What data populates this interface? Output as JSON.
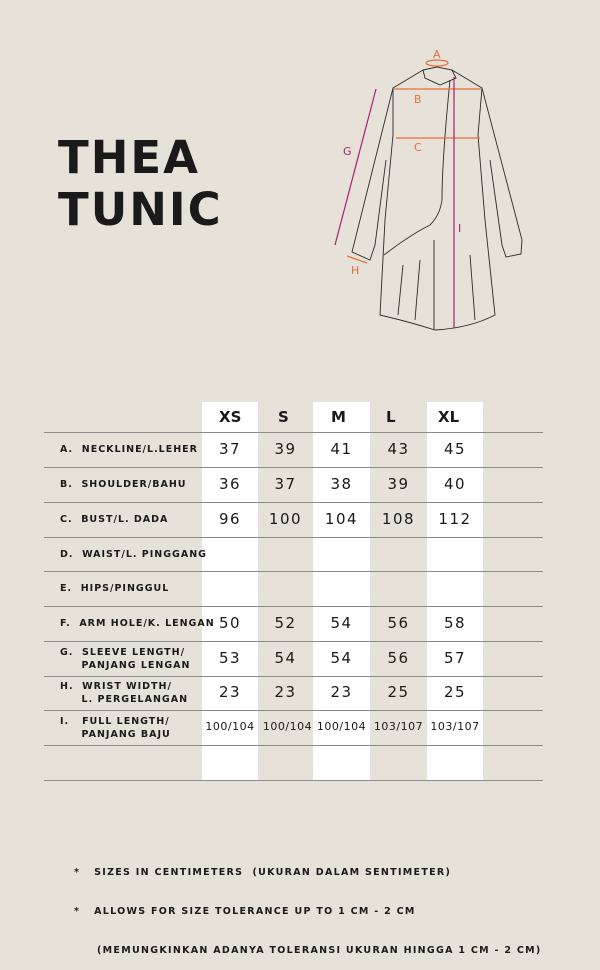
{
  "title_line1": "THEA",
  "title_line2": "TUNIC",
  "diagram_labels": {
    "a": "A",
    "b": "B",
    "c": "C",
    "g": "G",
    "h": "H",
    "i": "I"
  },
  "colors": {
    "background": "#e6e1d9",
    "orange": "#e8703a",
    "magenta": "#a8226a"
  },
  "table": {
    "sizes": [
      "XS",
      "S",
      "M",
      "L",
      "XL"
    ],
    "rows": [
      {
        "label": "A.  NECKLINE/L.LEHER",
        "values": [
          "37",
          "39",
          "41",
          "43",
          "45"
        ]
      },
      {
        "label": "B.  SHOULDER/BAHU",
        "values": [
          "36",
          "37",
          "38",
          "39",
          "40"
        ]
      },
      {
        "label": "C.  BUST/L. DADA",
        "values": [
          "96",
          "100",
          "104",
          "108",
          "112"
        ]
      },
      {
        "label": "D.  WAIST/L. PINGGANG",
        "values": [
          "",
          "",
          "",
          "",
          ""
        ]
      },
      {
        "label": "E.  HIPS/PINGGUL",
        "values": [
          "",
          "",
          "",
          "",
          ""
        ]
      },
      {
        "label": "F.  ARM HOLE/K. LENGAN",
        "values": [
          "50",
          "52",
          "54",
          "56",
          "58"
        ]
      },
      {
        "label": "G.  SLEEVE LENGTH/\n     PANJANG LENGAN",
        "values": [
          "53",
          "54",
          "54",
          "56",
          "57"
        ]
      },
      {
        "label": "H.  WRIST WIDTH/\n     L. PERGELANGAN",
        "values": [
          "23",
          "23",
          "23",
          "25",
          "25"
        ]
      },
      {
        "label": "I.   FULL LENGTH/\n     PANJANG BAJU",
        "values": [
          "100/104",
          "100/104",
          "100/104",
          "103/107",
          "103/107"
        ]
      },
      {
        "label": "",
        "values": [
          "",
          "",
          "",
          "",
          ""
        ]
      }
    ]
  },
  "notes": [
    "*   SIZES IN CENTIMETERS  (UKURAN DALAM SENTIMETER)",
    "*   ALLOWS FOR SIZE TOLERANCE UP TO 1 CM - 2 CM",
    "     (MEMUNGKINKAN ADANYA TOLERANSI UKURAN HINGGA 1 CM - 2 CM)"
  ]
}
